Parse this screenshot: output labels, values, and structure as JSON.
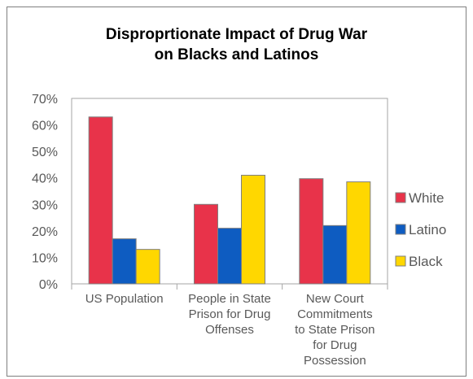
{
  "chart_data": {
    "type": "bar",
    "title_lines": [
      "Disproprtionate Impact of Drug War",
      "on Blacks and Latinos"
    ],
    "categories": [
      [
        "US Population"
      ],
      [
        "People in State",
        "Prison for Drug",
        "Offenses"
      ],
      [
        "New Court",
        "Commitments",
        "to State Prison",
        "for Drug",
        "Possession"
      ]
    ],
    "series": [
      {
        "name": "White",
        "color": "#e8334a",
        "values": [
          63,
          30,
          39.7
        ]
      },
      {
        "name": "Latino",
        "color": "#0e5cc1",
        "values": [
          17,
          21,
          22
        ]
      },
      {
        "name": "Black",
        "color": "#ffd700",
        "values": [
          13,
          41,
          38.5
        ]
      }
    ],
    "y_ticks": [
      "0%",
      "10%",
      "20%",
      "30%",
      "40%",
      "50%",
      "60%",
      "70%"
    ],
    "ylim": [
      0,
      70
    ],
    "grid": false,
    "legend_position": "right"
  }
}
